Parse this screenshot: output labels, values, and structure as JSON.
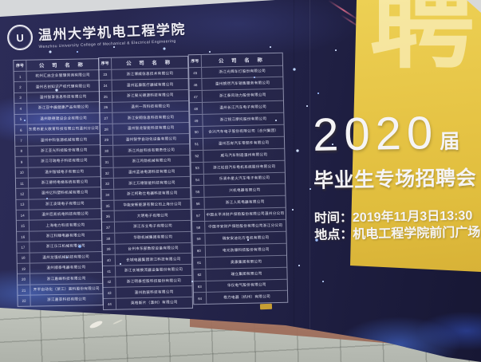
{
  "billboard": {
    "logo": {
      "emblem": "U",
      "title": "温州大学机电工程学院",
      "subtitle": "Wenzhou University College of Mechanical & Electrical Engineering"
    },
    "tables": [
      {
        "headers": {
          "no": "序号",
          "name": "公 司 名 称"
        },
        "rows": [
          {
            "no": "1",
            "name": "杭州汇启企业管理咨询有限公司"
          },
          {
            "no": "2",
            "name": "温州名创知识产权代理有限公司"
          },
          {
            "no": "3",
            "name": "温州智享信息科技有限公司"
          },
          {
            "no": "4",
            "name": "浙江亚中晨健康产品有限公司"
          },
          {
            "no": "5",
            "name": "温州联德建设企业有限公司"
          },
          {
            "no": "6",
            "name": "东莞市星火教育科技有限公司温州分公司"
          },
          {
            "no": "7",
            "name": "温州中科信源机械有限公司"
          },
          {
            "no": "8",
            "name": "浙江亚光科技股份有限公司"
          },
          {
            "no": "9",
            "name": "浙江可瑞电子科技有限公司"
          },
          {
            "no": "10",
            "name": "温州智城电子有限公司"
          },
          {
            "no": "11",
            "name": "浙江德特电梯系统有限公司"
          },
          {
            "no": "12",
            "name": "温州亿科塑料机械有限公司"
          },
          {
            "no": "13",
            "name": "浙江凌琦电子有限公司"
          },
          {
            "no": "14",
            "name": "温州巨凯机电科技有限公司"
          },
          {
            "no": "15",
            "name": "上海电力科技有限公司"
          },
          {
            "no": "16",
            "name": "浙江科臻电器有限公司"
          },
          {
            "no": "17",
            "name": "浙江乐江机械有限公司"
          },
          {
            "no": "18",
            "name": "温州龙强机械科技有限公司"
          },
          {
            "no": "19",
            "name": "温州顺泰电器有限公司"
          },
          {
            "no": "20",
            "name": "浙江嘉峰科技有限公司"
          },
          {
            "no": "21",
            "name": "开平自动化（浙江）高科股份有限公司"
          },
          {
            "no": "22",
            "name": "浙江嘉亚科技有限公司"
          }
        ]
      },
      {
        "headers": {
          "no": "序号",
          "name": "公 司 名 称"
        },
        "rows": [
          {
            "no": "23",
            "name": "浙江博威信息技术有限公司"
          },
          {
            "no": "24",
            "name": "温州延康医疗器械有限公司"
          },
          {
            "no": "25",
            "name": "浙江聚光德源科技有限公司"
          },
          {
            "no": "26",
            "name": "温州一百科技有限公司"
          },
          {
            "no": "27",
            "name": "浙江安翔信息科技有限公司"
          },
          {
            "no": "28",
            "name": "温州智龙智能科技有限公司"
          },
          {
            "no": "29",
            "name": "温州智学自动化设备有限公司"
          },
          {
            "no": "30",
            "name": "浙江鸿益科技有限责任公司"
          },
          {
            "no": "31",
            "name": "浙江鸿勋机械有限公司"
          },
          {
            "no": "32",
            "name": "温州蓝迪电源科技有限公司"
          },
          {
            "no": "33",
            "name": "浙江万德智能科技有限公司"
          },
          {
            "no": "34",
            "name": "浙江柯勒仕电器科技有限公司"
          },
          {
            "no": "35",
            "name": "华能安新能源有限公司上海分公司"
          },
          {
            "no": "36",
            "name": "大明电子有限公司"
          },
          {
            "no": "37",
            "name": "浙江东立电子有限公司"
          },
          {
            "no": "38",
            "name": "华联机械集团有限公司"
          },
          {
            "no": "39",
            "name": "台州市东部数控设备有限公司"
          },
          {
            "no": "40",
            "name": "长城电器集团浙江科技有限公司"
          },
          {
            "no": "41",
            "name": "浙江长城换流器设备股份有限公司"
          },
          {
            "no": "42",
            "name": "浙江明泰控股科技股份有限公司"
          },
          {
            "no": "43",
            "name": "温州航装科技有限公司"
          },
          {
            "no": "44",
            "name": "英格斯片（温州）有限公司"
          }
        ]
      },
      {
        "headers": {
          "no": "序号",
          "name": "公 司 名 称"
        },
        "rows": [
          {
            "no": "45",
            "name": "浙江光辉车灯股份有限公司"
          },
          {
            "no": "46",
            "name": "温州朗然汽车销售服务有限公司"
          },
          {
            "no": "47",
            "name": "浙江泰风动力股份有限公司"
          },
          {
            "no": "48",
            "name": "温州长江汽车电子有限公司"
          },
          {
            "no": "49",
            "name": "浙江钱江摩托股份有限公司"
          },
          {
            "no": "50",
            "name": "合兴汽车电子股份有限公司（合兴集团）"
          },
          {
            "no": "51",
            "name": "温州百岸汽车零部件有限公司"
          },
          {
            "no": "52",
            "name": "威马汽车制造温州有限公司"
          },
          {
            "no": "53",
            "name": "浙江松田汽车电机系统股份有限公司"
          },
          {
            "no": "54",
            "name": "乐清市星火汽车电子有限公司"
          },
          {
            "no": "55",
            "name": "兴机电器有限公司"
          },
          {
            "no": "56",
            "name": "浙江人民电器有限公司"
          },
          {
            "no": "57",
            "name": "中国太平洋财产保险股份有限公司温州分公司"
          },
          {
            "no": "58",
            "name": "中国平安财产保险股份有限公司浙江分公司"
          },
          {
            "no": "59",
            "name": "瑞安安迪北方电机有限公司"
          },
          {
            "no": "60",
            "name": "电光防爆科技股份有限公司"
          },
          {
            "no": "61",
            "name": "奥康集团有限公司"
          },
          {
            "no": "62",
            "name": "瑞立集团有限公司"
          },
          {
            "no": "63",
            "name": "华仪电气股份有限公司"
          },
          {
            "no": "64",
            "name": "格力电器（杭州）有限公司"
          }
        ]
      }
    ],
    "poster": {
      "watermark": "聘",
      "year": "2020",
      "year_suffix": "届",
      "title": "毕业生专场招聘会",
      "time_label": "时间：",
      "time_value": "2019年11月3日13:30",
      "place_label": "地点：",
      "place_value": "机电工程学院前门广场",
      "colors": {
        "panel_yellow": "#e5c243",
        "board_navy": "#222247",
        "text_white": "#f5f4f6"
      }
    }
  }
}
